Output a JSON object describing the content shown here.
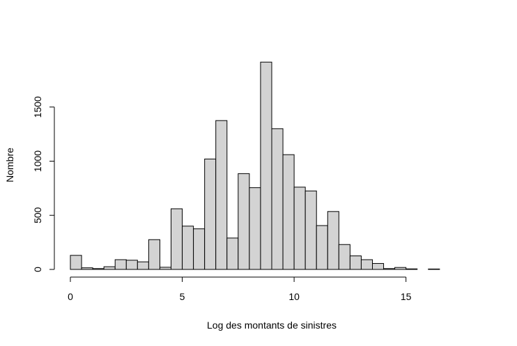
{
  "chart_data": {
    "type": "bar",
    "subtype": "histogram",
    "title": "",
    "xlabel": "Log des montants de sinistres",
    "ylabel": "Nombre",
    "bin_width": 0.5,
    "bin_start": 0,
    "xlim": [
      0,
      18
    ],
    "ylim": [
      0,
      1900
    ],
    "x_ticks": [
      0,
      5,
      10,
      15
    ],
    "y_ticks": [
      0,
      500,
      1000,
      1500
    ],
    "grid": false,
    "bar_color": "#d3d3d3",
    "edge_color": "#000000",
    "bins": [
      {
        "x0": 0.0,
        "x1": 0.5,
        "count": 130
      },
      {
        "x0": 0.5,
        "x1": 1.0,
        "count": 15
      },
      {
        "x0": 1.0,
        "x1": 1.5,
        "count": 8
      },
      {
        "x0": 1.5,
        "x1": 2.0,
        "count": 25
      },
      {
        "x0": 2.0,
        "x1": 2.5,
        "count": 90
      },
      {
        "x0": 2.5,
        "x1": 3.0,
        "count": 85
      },
      {
        "x0": 3.0,
        "x1": 3.5,
        "count": 70
      },
      {
        "x0": 3.5,
        "x1": 4.0,
        "count": 275
      },
      {
        "x0": 4.0,
        "x1": 4.5,
        "count": 20
      },
      {
        "x0": 4.5,
        "x1": 5.0,
        "count": 560
      },
      {
        "x0": 5.0,
        "x1": 5.5,
        "count": 400
      },
      {
        "x0": 5.5,
        "x1": 6.0,
        "count": 375
      },
      {
        "x0": 6.0,
        "x1": 6.5,
        "count": 1020
      },
      {
        "x0": 6.5,
        "x1": 7.0,
        "count": 1375
      },
      {
        "x0": 7.0,
        "x1": 7.5,
        "count": 290
      },
      {
        "x0": 7.5,
        "x1": 8.0,
        "count": 885
      },
      {
        "x0": 8.0,
        "x1": 8.5,
        "count": 755
      },
      {
        "x0": 8.5,
        "x1": 9.0,
        "count": 1915
      },
      {
        "x0": 9.0,
        "x1": 9.5,
        "count": 1300
      },
      {
        "x0": 9.5,
        "x1": 10.0,
        "count": 1060
      },
      {
        "x0": 10.0,
        "x1": 10.5,
        "count": 760
      },
      {
        "x0": 10.5,
        "x1": 11.0,
        "count": 725
      },
      {
        "x0": 11.0,
        "x1": 11.5,
        "count": 405
      },
      {
        "x0": 11.5,
        "x1": 12.0,
        "count": 535
      },
      {
        "x0": 12.0,
        "x1": 12.5,
        "count": 230
      },
      {
        "x0": 12.5,
        "x1": 13.0,
        "count": 125
      },
      {
        "x0": 13.0,
        "x1": 13.5,
        "count": 90
      },
      {
        "x0": 13.5,
        "x1": 14.0,
        "count": 55
      },
      {
        "x0": 14.0,
        "x1": 14.5,
        "count": 8
      },
      {
        "x0": 14.5,
        "x1": 15.0,
        "count": 18
      },
      {
        "x0": 15.0,
        "x1": 15.5,
        "count": 5
      },
      {
        "x0": 15.5,
        "x1": 16.0,
        "count": 0
      },
      {
        "x0": 16.0,
        "x1": 16.5,
        "count": 4
      },
      {
        "x0": 16.5,
        "x1": 17.0,
        "count": 0
      },
      {
        "x0": 17.0,
        "x1": 17.5,
        "count": 0
      },
      {
        "x0": 17.5,
        "x1": 18.0,
        "count": 0
      }
    ]
  }
}
